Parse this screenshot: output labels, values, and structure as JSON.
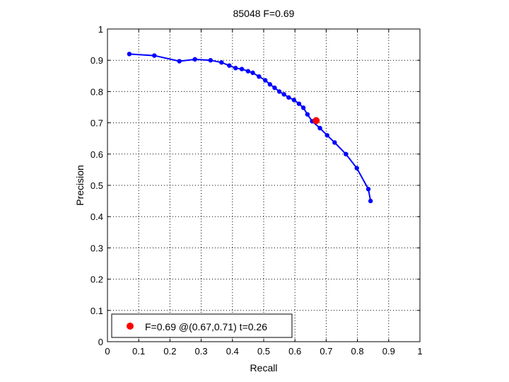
{
  "chart_data": {
    "type": "line",
    "title": "85048 F=0.69",
    "xlabel": "Recall",
    "ylabel": "Precision",
    "xlim": [
      0,
      1
    ],
    "ylim": [
      0,
      1
    ],
    "xticks": [
      0,
      0.1,
      0.2,
      0.3,
      0.4,
      0.5,
      0.6,
      0.7,
      0.8,
      0.9,
      1
    ],
    "yticks": [
      0,
      0.1,
      0.2,
      0.3,
      0.4,
      0.5,
      0.6,
      0.7,
      0.8,
      0.9,
      1
    ],
    "xtick_labels": [
      "0",
      "0.1",
      "0.2",
      "0.3",
      "0.4",
      "0.5",
      "0.6",
      "0.7",
      "0.8",
      "0.9",
      "1"
    ],
    "ytick_labels": [
      "0",
      "0.1",
      "0.2",
      "0.3",
      "0.4",
      "0.5",
      "0.6",
      "0.7",
      "0.8",
      "0.9",
      "1"
    ],
    "grid": true,
    "grid_style": "dotted",
    "legend_position": "bottom-left",
    "series": [
      {
        "color": "#0000ff",
        "marker": "dot",
        "x": [
          0.07,
          0.15,
          0.23,
          0.28,
          0.33,
          0.365,
          0.39,
          0.41,
          0.43,
          0.45,
          0.465,
          0.485,
          0.505,
          0.52,
          0.535,
          0.55,
          0.565,
          0.58,
          0.597,
          0.613,
          0.627,
          0.64,
          0.655,
          0.68,
          0.703,
          0.727,
          0.763,
          0.798,
          0.835,
          0.842
        ],
        "y": [
          0.92,
          0.915,
          0.897,
          0.903,
          0.9,
          0.893,
          0.883,
          0.875,
          0.872,
          0.865,
          0.86,
          0.848,
          0.836,
          0.823,
          0.812,
          0.8,
          0.791,
          0.781,
          0.773,
          0.761,
          0.748,
          0.727,
          0.705,
          0.683,
          0.66,
          0.637,
          0.6,
          0.555,
          0.488,
          0.45
        ]
      },
      {
        "name": "F=0.69 @(0.67,0.71) t=0.26",
        "color": "#ff0000",
        "marker": "dot-large",
        "x": [
          0.668
        ],
        "y": [
          0.707
        ]
      }
    ],
    "legend_text": "F=0.69 @(0.67,0.71) t=0.26"
  }
}
